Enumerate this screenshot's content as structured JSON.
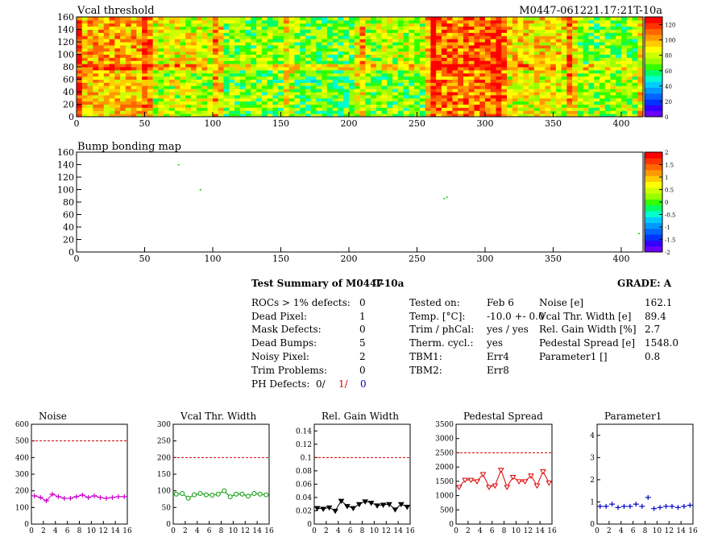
{
  "header": {
    "map_title": "Vcal threshold",
    "module_id": "M0447-061221.17:21T-10a",
    "bump_title": "Bump bonding map"
  },
  "colors": {
    "palette": [
      "#6a00ff",
      "#3300ff",
      "#0033ff",
      "#0066ff",
      "#0099ff",
      "#00ccff",
      "#00ffcc",
      "#00ff66",
      "#33ff00",
      "#99ff00",
      "#ccff00",
      "#ffff00",
      "#ffcc00",
      "#ff9900",
      "#ff6600",
      "#ff3300",
      "#ff0000"
    ],
    "ref_line": "#cc0000",
    "noise": "#cc00cc",
    "vcal": "#009900",
    "gain": "#000000",
    "pedestal": "#dd0000",
    "param": "#0000cc"
  },
  "chart_data": [
    {
      "type": "heatmap",
      "name": "vcal-threshold-map",
      "title": "Vcal threshold",
      "xlim": [
        0,
        416
      ],
      "ylim": [
        0,
        160
      ],
      "xticks": [
        0,
        50,
        100,
        150,
        200,
        250,
        300,
        350,
        400
      ],
      "yticks": [
        0,
        20,
        40,
        60,
        80,
        100,
        120,
        140,
        160
      ],
      "zlim": [
        0,
        130
      ],
      "zticks": [
        0,
        20,
        40,
        60,
        80,
        100,
        120
      ],
      "roc_means": [
        [
          95,
          80,
          70,
          65,
          70,
          105,
          85,
          75
        ],
        [
          100,
          85,
          72,
          68,
          78,
          110,
          90,
          70
        ]
      ]
    },
    {
      "type": "scatter",
      "name": "bump-bonding-map",
      "title": "Bump bonding map",
      "xlim": [
        0,
        416
      ],
      "ylim": [
        0,
        160
      ],
      "xticks": [
        0,
        50,
        100,
        150,
        200,
        250,
        300,
        350,
        400
      ],
      "yticks": [
        0,
        20,
        40,
        60,
        80,
        100,
        120,
        140,
        160
      ],
      "zlim": [
        -2,
        2
      ],
      "zticks": [
        2,
        1.5,
        1,
        0.5,
        0,
        -0.5,
        -1,
        -1.5,
        -2
      ],
      "points": [
        [
          75,
          140
        ],
        [
          91,
          100
        ],
        [
          270,
          86
        ],
        [
          272,
          88
        ],
        [
          413,
          30
        ]
      ]
    },
    {
      "type": "line",
      "name": "noise",
      "title": "Noise",
      "xlim": [
        0,
        16
      ],
      "ylim": [
        0,
        600
      ],
      "xticks": [
        0,
        2,
        4,
        6,
        8,
        10,
        12,
        14,
        16
      ],
      "yticks": [
        0,
        100,
        200,
        300,
        400,
        500,
        600
      ],
      "ref": 500,
      "x": [
        0.5,
        1.5,
        2.5,
        3.5,
        4.5,
        5.5,
        6.5,
        7.5,
        8.5,
        9.5,
        10.5,
        11.5,
        12.5,
        13.5,
        14.5,
        15.5
      ],
      "values": [
        170,
        160,
        140,
        180,
        165,
        155,
        155,
        165,
        175,
        160,
        170,
        160,
        155,
        160,
        165,
        165
      ],
      "marker": "cross"
    },
    {
      "type": "line",
      "name": "vcal-thr-width",
      "title": "Vcal Thr. Width",
      "xlim": [
        0,
        16
      ],
      "ylim": [
        0,
        300
      ],
      "xticks": [
        0,
        2,
        4,
        6,
        8,
        10,
        12,
        14,
        16
      ],
      "yticks": [
        0,
        50,
        100,
        150,
        200,
        250,
        300
      ],
      "ref": 200,
      "x": [
        0.5,
        1.5,
        2.5,
        3.5,
        4.5,
        5.5,
        6.5,
        7.5,
        8.5,
        9.5,
        10.5,
        11.5,
        12.5,
        13.5,
        14.5,
        15.5
      ],
      "values": [
        90,
        92,
        78,
        88,
        92,
        88,
        87,
        90,
        100,
        82,
        90,
        90,
        84,
        92,
        90,
        88
      ],
      "marker": "circle"
    },
    {
      "type": "line",
      "name": "rel-gain-width",
      "title": "Rel. Gain Width",
      "xlim": [
        0,
        16
      ],
      "ylim": [
        0,
        0.15
      ],
      "xticks": [
        0,
        2,
        4,
        6,
        8,
        10,
        12,
        14,
        16
      ],
      "yticks": [
        0,
        0.02,
        0.04,
        0.06,
        0.08,
        0.1,
        0.12,
        0.14
      ],
      "ref": 0.1,
      "x": [
        0.5,
        1.5,
        2.5,
        3.5,
        4.5,
        5.5,
        6.5,
        7.5,
        8.5,
        9.5,
        10.5,
        11.5,
        12.5,
        13.5,
        14.5,
        15.5
      ],
      "values": [
        0.024,
        0.023,
        0.025,
        0.02,
        0.035,
        0.027,
        0.024,
        0.03,
        0.034,
        0.032,
        0.028,
        0.029,
        0.03,
        0.022,
        0.03,
        0.026
      ],
      "marker": "triangle"
    },
    {
      "type": "line",
      "name": "pedestal-spread",
      "title": "Pedestal Spread",
      "xlim": [
        0,
        16
      ],
      "ylim": [
        0,
        3500
      ],
      "xticks": [
        0,
        2,
        4,
        6,
        8,
        10,
        12,
        14,
        16
      ],
      "yticks": [
        0,
        500,
        1000,
        1500,
        2000,
        2500,
        3000,
        3500
      ],
      "ref": 2500,
      "x": [
        0.5,
        1.5,
        2.5,
        3.5,
        4.5,
        5.5,
        6.5,
        7.5,
        8.5,
        9.5,
        10.5,
        11.5,
        12.5,
        13.5,
        14.5,
        15.5
      ],
      "values": [
        1300,
        1550,
        1550,
        1500,
        1750,
        1300,
        1350,
        1900,
        1300,
        1650,
        1500,
        1500,
        1700,
        1350,
        1850,
        1450
      ],
      "marker": "triangle"
    },
    {
      "type": "line",
      "name": "parameter1",
      "title": "Parameter1",
      "xlim": [
        0,
        16
      ],
      "ylim": [
        0,
        4.5
      ],
      "xticks": [
        0,
        2,
        4,
        6,
        8,
        10,
        12,
        14,
        16
      ],
      "yticks": [
        0,
        1,
        2,
        3,
        4
      ],
      "ref": null,
      "x": [
        0.5,
        1.5,
        2.5,
        3.5,
        4.5,
        5.5,
        6.5,
        7.5,
        8.5,
        9.5,
        10.5,
        11.5,
        12.5,
        13.5,
        14.5,
        15.5
      ],
      "values": [
        0.8,
        0.8,
        0.9,
        0.75,
        0.8,
        0.8,
        0.9,
        0.8,
        1.2,
        0.7,
        0.75,
        0.8,
        0.8,
        0.75,
        0.8,
        0.85
      ],
      "marker": "cross"
    }
  ],
  "summary": {
    "title": "Test Summary of M0447",
    "tag": "T-10a",
    "grade_label": "GRADE:  A",
    "left": [
      {
        "label": "ROCs > 1% defects:",
        "value": "0"
      },
      {
        "label": "Dead Pixel:",
        "value": "1"
      },
      {
        "label": "Mask Defects:",
        "value": "0"
      },
      {
        "label": "Dead Bumps:",
        "value": "5"
      },
      {
        "label": "Noisy Pixel:",
        "value": "2"
      },
      {
        "label": "Trim Problems:",
        "value": "0"
      }
    ],
    "ph_label": "PH Defects:",
    "ph_values": [
      "0/",
      "1/",
      "0"
    ],
    "middle": [
      {
        "label": "Tested on:",
        "value": "Feb 6"
      },
      {
        "label": "Temp. [°C]:",
        "value": "-10.0 +- 0.0"
      },
      {
        "label": "Trim / phCal:",
        "value": "yes / yes"
      },
      {
        "label": "Therm. cycl.:",
        "value": "yes"
      },
      {
        "label": "TBM1:",
        "value": "Err4"
      },
      {
        "label": "TBM2:",
        "value": "Err8"
      }
    ],
    "right": [
      {
        "label": "Noise [e]",
        "value": "162.1"
      },
      {
        "label": "Vcal Thr. Width [e]",
        "value": "89.4"
      },
      {
        "label": "Rel. Gain Width [%]",
        "value": "2.7"
      },
      {
        "label": "Pedestal Spread [e]",
        "value": "1548.0"
      },
      {
        "label": "Parameter1 []",
        "value": "0.8"
      }
    ]
  }
}
